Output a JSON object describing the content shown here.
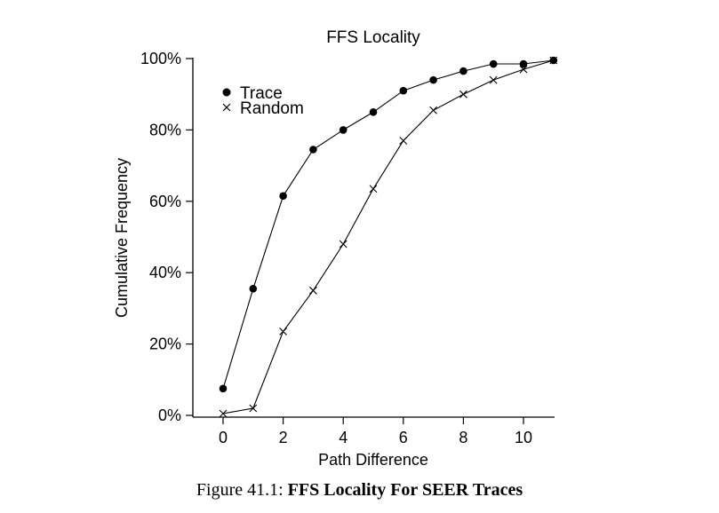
{
  "chart_data": {
    "type": "line",
    "title": "FFS Locality",
    "xlabel": "Path Difference",
    "ylabel": "Cumulative Frequency",
    "xlim": [
      -1,
      11
    ],
    "ylim": [
      0,
      100
    ],
    "xticks": [
      0,
      2,
      4,
      6,
      8,
      10
    ],
    "yticks": [
      0,
      20,
      40,
      60,
      80,
      100
    ],
    "ytick_labels": [
      "0%",
      "20%",
      "40%",
      "60%",
      "80%",
      "100%"
    ],
    "grid": false,
    "legend_position": "top-left",
    "x": [
      0,
      1,
      2,
      3,
      4,
      5,
      6,
      7,
      8,
      9,
      10,
      11
    ],
    "series": [
      {
        "name": "Trace",
        "marker": "filled-circle",
        "values": [
          7.5,
          35.5,
          61.5,
          74.5,
          80,
          85,
          91,
          94,
          96.5,
          98.5,
          98.5,
          99.5
        ]
      },
      {
        "name": "Random",
        "marker": "x",
        "values": [
          0.5,
          2,
          23.5,
          35,
          48,
          63.5,
          77,
          85.5,
          90,
          94,
          97,
          99.5
        ]
      }
    ]
  },
  "caption": {
    "prefix": "Figure 41.1: ",
    "title": "FFS Locality For SEER Traces"
  }
}
